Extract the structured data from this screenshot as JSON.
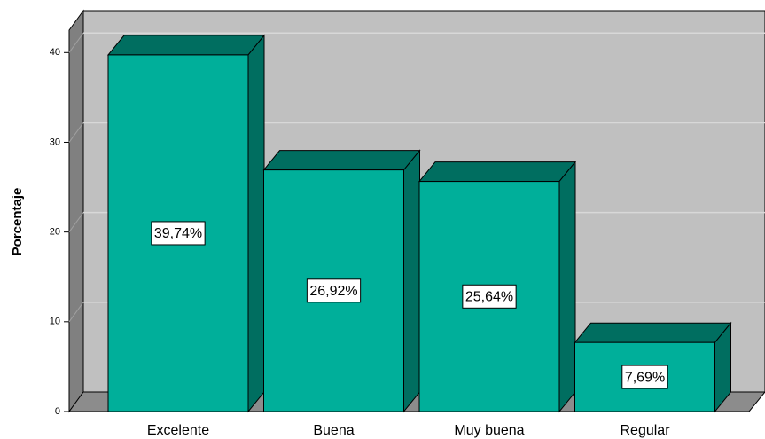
{
  "chart_data": {
    "type": "bar",
    "ylabel": "Porcentaje",
    "categories": [
      "Excelente",
      "Buena",
      "Muy buena",
      "Regular"
    ],
    "values": [
      39.74,
      26.92,
      25.64,
      7.69
    ],
    "value_labels": [
      "39,74%",
      "26,92%",
      "25,64%",
      "7,69%"
    ],
    "color": "#00af9a",
    "ylim": [
      0,
      42.5
    ],
    "yticks": [
      0,
      10,
      20,
      30,
      40
    ],
    "grid": true
  }
}
